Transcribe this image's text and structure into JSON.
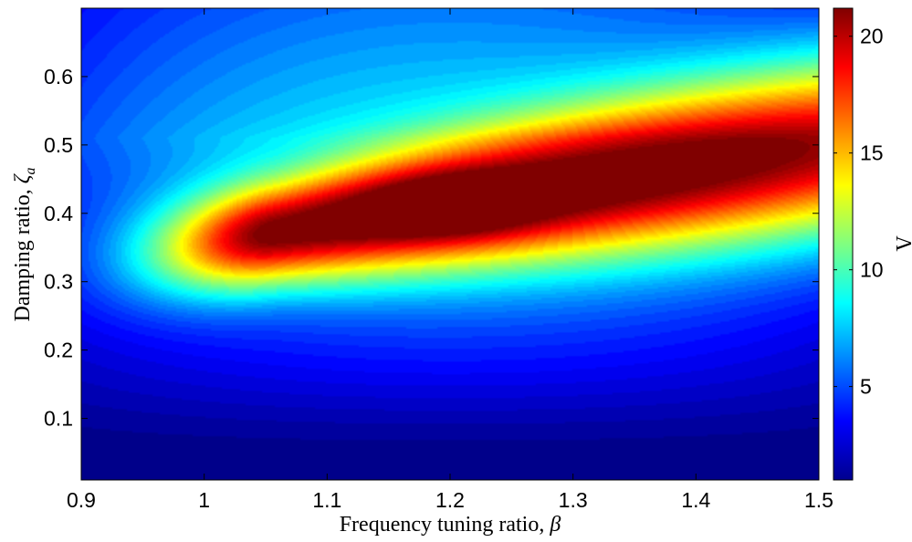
{
  "chart_data": {
    "type": "heatmap",
    "title": "",
    "xlabel": "Frequency tuning ratio, ",
    "xlabel_symbol": "β",
    "ylabel": "Damping ratio, ",
    "ylabel_symbol": "ζ",
    "ylabel_subscript": "a",
    "colorbar_label": "Λ",
    "colormap": "jet",
    "xlim": [
      0.9,
      1.5
    ],
    "ylim": [
      0.01,
      0.7
    ],
    "clim": [
      1,
      21.2
    ],
    "x_ticks": [
      0.9,
      1.0,
      1.1,
      1.2,
      1.3,
      1.4,
      1.5
    ],
    "x_tick_labels": [
      "0.9",
      "1",
      "1.1",
      "1.2",
      "1.3",
      "1.4",
      "1.5"
    ],
    "y_ticks": [
      0.1,
      0.2,
      0.3,
      0.4,
      0.5,
      0.6
    ],
    "y_tick_labels": [
      "0.1",
      "0.2",
      "0.3",
      "0.4",
      "0.5",
      "0.6"
    ],
    "colorbar_ticks": [
      5,
      10,
      15,
      20
    ],
    "colorbar_tick_labels": [
      "5",
      "10",
      "15",
      "20"
    ],
    "peak": {
      "x": 1.2,
      "y": 0.41,
      "value": 21.2
    },
    "grid": false,
    "legend": "colorbar-right"
  }
}
